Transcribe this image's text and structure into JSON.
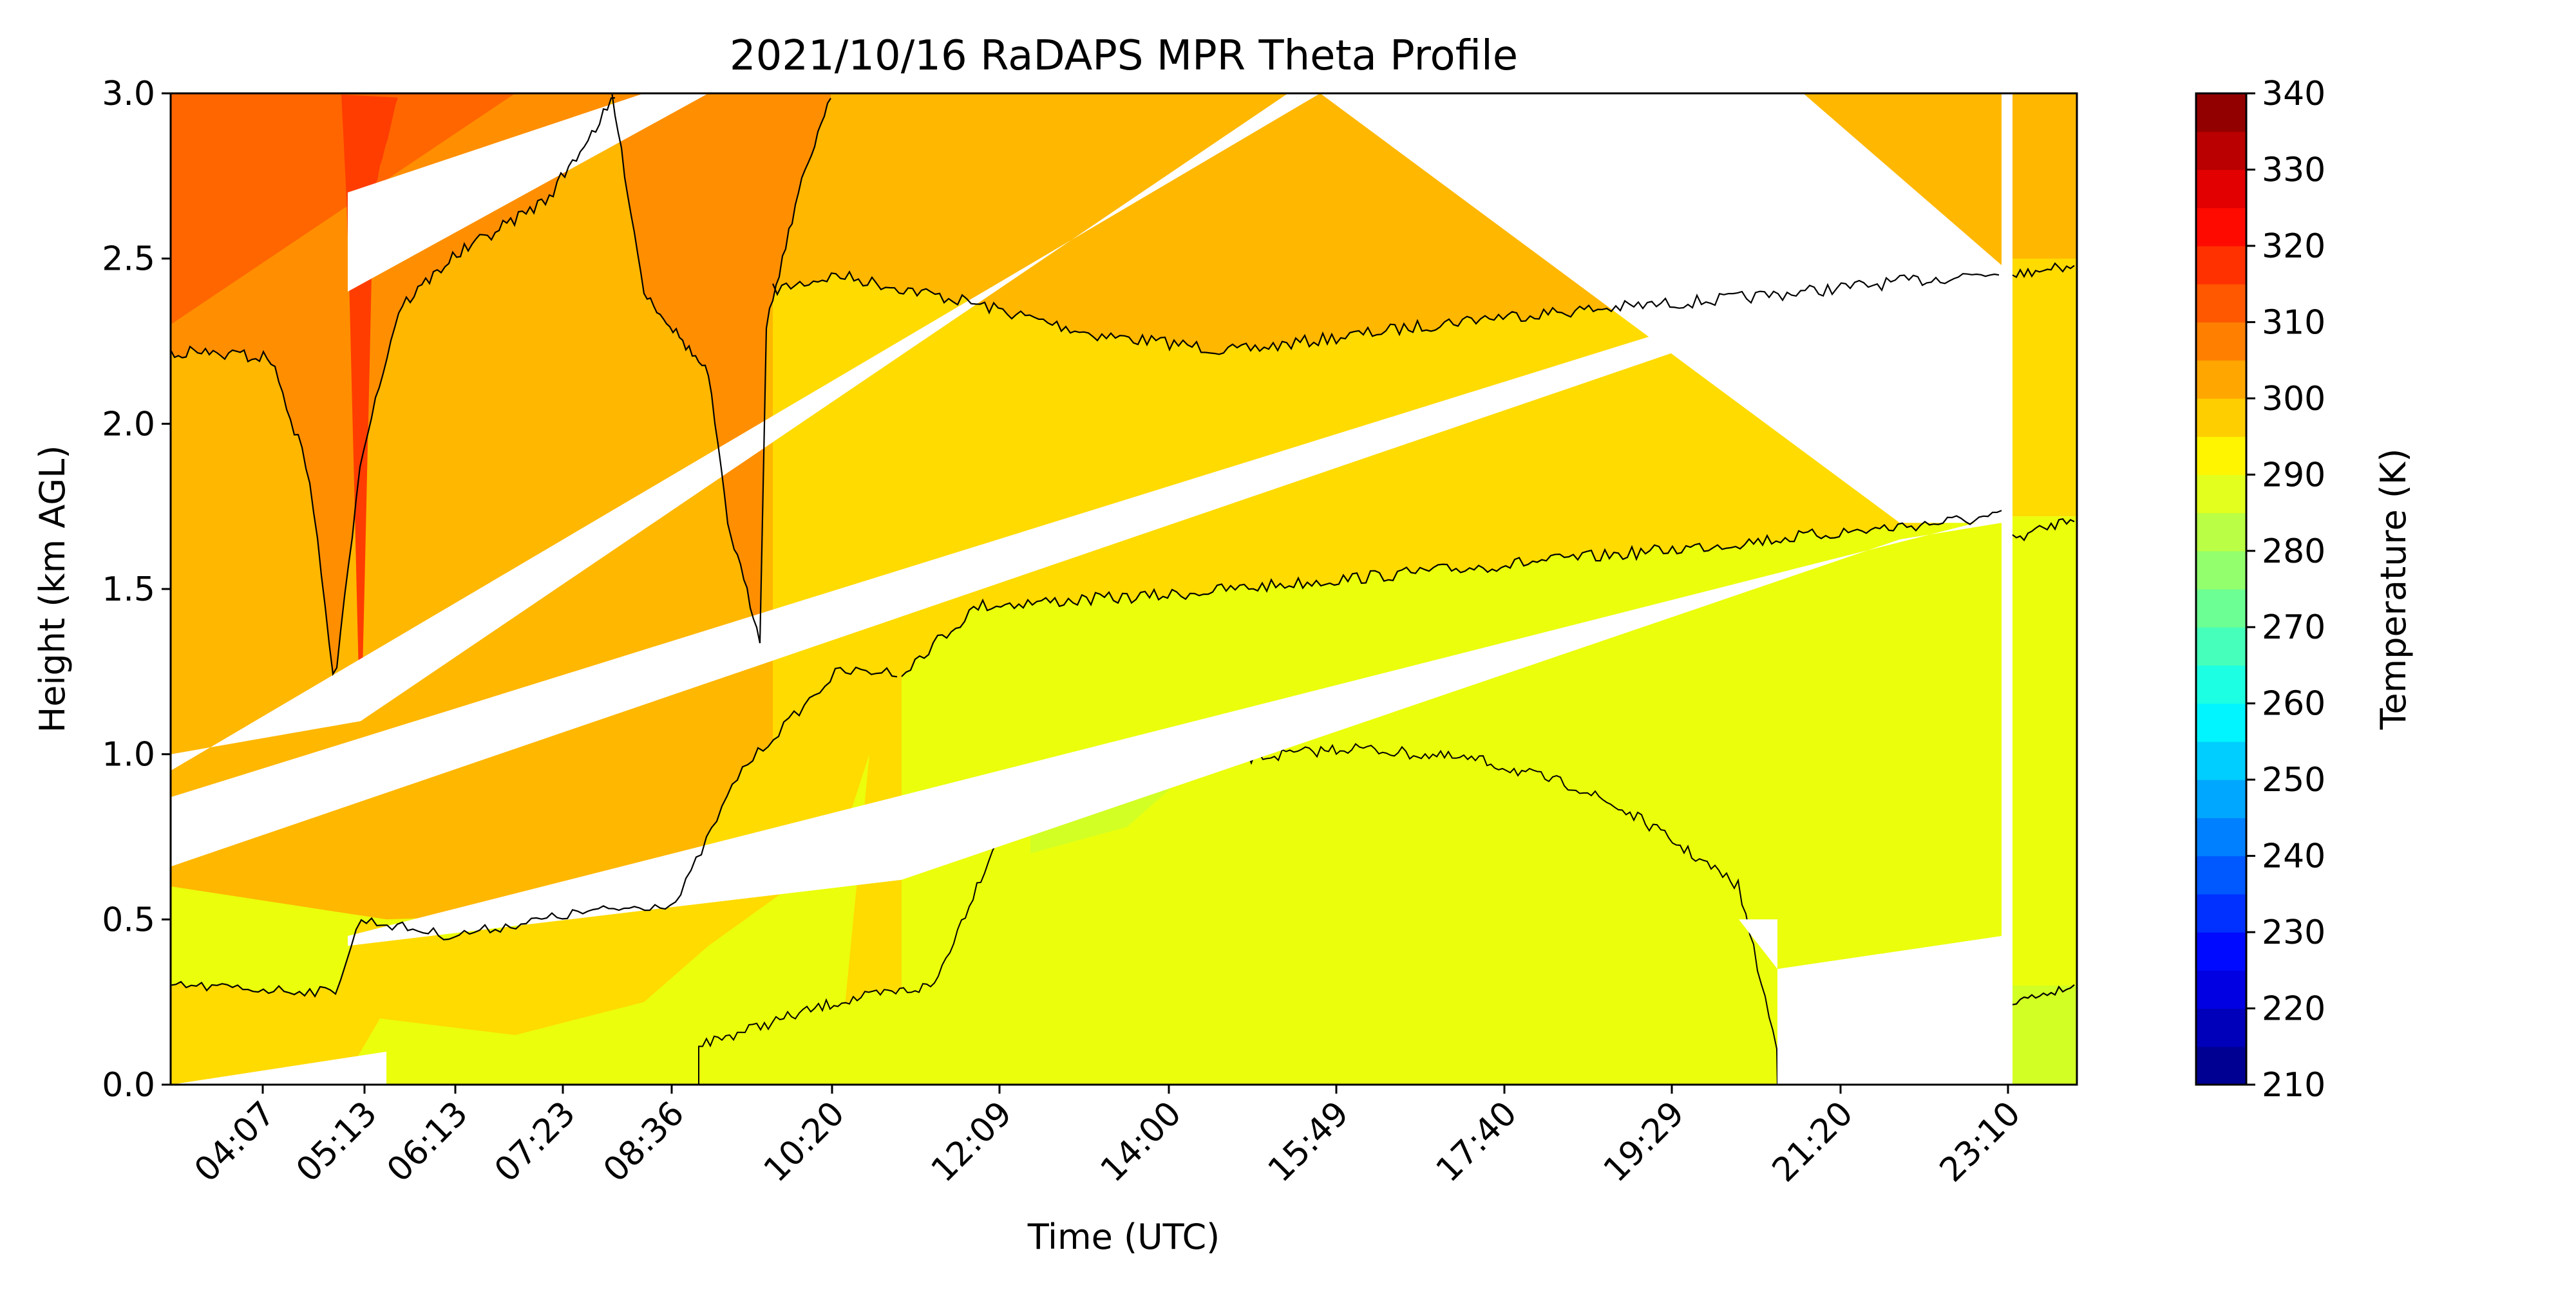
{
  "chart_data": {
    "type": "heatmap",
    "title": "2021/10/16 RaDAPS MPR Theta Profile",
    "xlabel": "Time (UTC)",
    "ylabel": "Height (km AGL)",
    "x_ticks": [
      "04:07",
      "05:13",
      "06:13",
      "07:23",
      "08:36",
      "10:20",
      "12:09",
      "14:00",
      "15:49",
      "17:40",
      "19:29",
      "21:20",
      "23:10"
    ],
    "y_ticks": [
      "0.0",
      "0.5",
      "1.0",
      "1.5",
      "2.0",
      "2.5",
      "3.0"
    ],
    "ylim": [
      0,
      3.0
    ],
    "colorbar": {
      "label": "Temperature (K)",
      "min": 210,
      "max": 340,
      "step": 5,
      "tick_labels": [
        "210",
        "220",
        "230",
        "240",
        "250",
        "260",
        "270",
        "280",
        "290",
        "300",
        "310",
        "320",
        "330",
        "340"
      ],
      "colormap": "jet"
    },
    "regions": [
      {
        "name": "band-290-295",
        "level": 292.5,
        "color": "#EBFF0C"
      },
      {
        "name": "band-285-290",
        "level": 287.5,
        "color": "#D2FF24"
      },
      {
        "name": "band-295-300",
        "level": 297.5,
        "color": "#FFDB00"
      },
      {
        "name": "band-300-305",
        "level": 302.5,
        "color": "#FFB700"
      },
      {
        "name": "band-305-310",
        "level": 307.5,
        "color": "#FF8F00"
      },
      {
        "name": "band-310-315",
        "level": 312.5,
        "color": "#FF6600"
      },
      {
        "name": "band-315-320",
        "level": 317.5,
        "color": "#FF3D00"
      }
    ]
  }
}
